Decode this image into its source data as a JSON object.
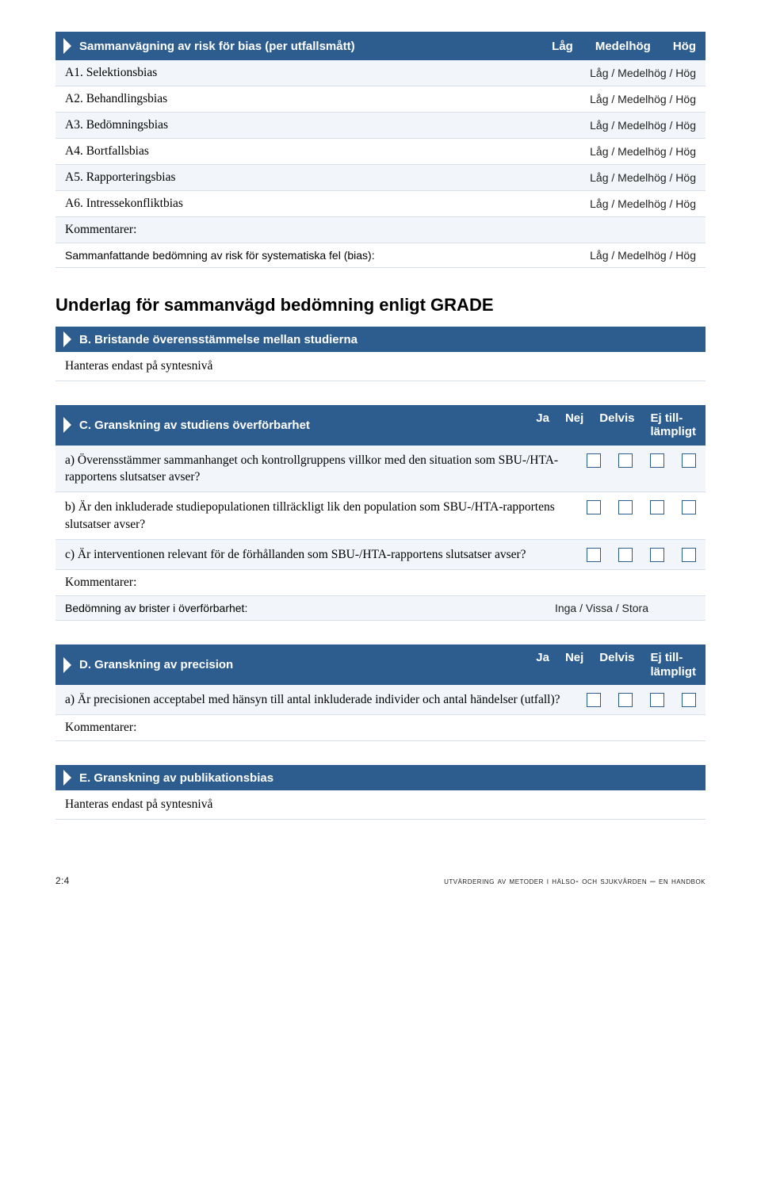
{
  "colors": {
    "header_bg": "#2d5c8f",
    "header_text": "#ffffff",
    "row_bg_alt": "#f2f6fa",
    "border": "#d7e0ea",
    "checkbox_border": "#2d5c8f",
    "body_text": "#000000"
  },
  "sectionA": {
    "header_title": "Sammanvägning av risk för bias (per utfallsmått)",
    "header_cols": [
      "Låg",
      "Medelhög",
      "Hög"
    ],
    "rows": [
      {
        "label": "A1. Selektionsbias",
        "value": "Låg / Medelhög / Hög"
      },
      {
        "label": "A2. Behandlingsbias",
        "value": "Låg / Medelhög / Hög"
      },
      {
        "label": "A3. Bedömningsbias",
        "value": "Låg / Medelhög / Hög"
      },
      {
        "label": "A4. Bortfallsbias",
        "value": "Låg / Medelhög / Hög"
      },
      {
        "label": "A5. Rapporteringsbias",
        "value": "Låg / Medelhög / Hög"
      },
      {
        "label": "A6. Intressekonfliktbias",
        "value": "Låg / Medelhög / Hög"
      }
    ],
    "komm": "Kommentarer:",
    "summary_label": "Sammanfattande bedömning av risk för systematiska fel (bias):",
    "summary_value": "Låg / Medelhög / Hög"
  },
  "grade_heading": "Underlag för sammanvägd bedömning enligt GRADE",
  "sectionB": {
    "title": "B. Bristande överensstämmelse mellan studierna",
    "content": "Hanteras endast på syntesnivå"
  },
  "sectionC": {
    "title": "C. Granskning av studiens överförbarhet",
    "cols": [
      "Ja",
      "Nej",
      "Delvis"
    ],
    "col_ej_line1": "Ej till-",
    "col_ej_line2": "lämpligt",
    "questions": [
      "a)  Överensstämmer sammanhanget och kontrollgruppens villkor med den situation som SBU-/HTA-rapportens slutsatser avser?",
      "b)  Är den inkluderade studiepopulationen tillräckligt lik den population som SBU-/HTA-rapportens slutsatser avser?",
      "c)  Är interventionen relevant för de förhållanden som SBU-/HTA-rapportens slutsatser avser?"
    ],
    "komm": "Kommentarer:",
    "assess_label": "Bedömning av brister i överförbarhet:",
    "assess_value": "Inga / Vissa / Stora"
  },
  "sectionD": {
    "title": "D. Granskning av precision",
    "cols": [
      "Ja",
      "Nej",
      "Delvis"
    ],
    "col_ej_line1": "Ej till-",
    "col_ej_line2": "lämpligt",
    "question": "a)  Är precisionen acceptabel med hänsyn till antal inkluderade individer och antal händelser (utfall)?",
    "komm": "Kommentarer:"
  },
  "sectionE": {
    "title": "E. Granskning av publikationsbias",
    "content": "Hanteras endast på syntesnivå"
  },
  "footer": {
    "left": "2:4",
    "right": "utvärdering av metoder i hälso- och sjukvården – en handbok"
  }
}
